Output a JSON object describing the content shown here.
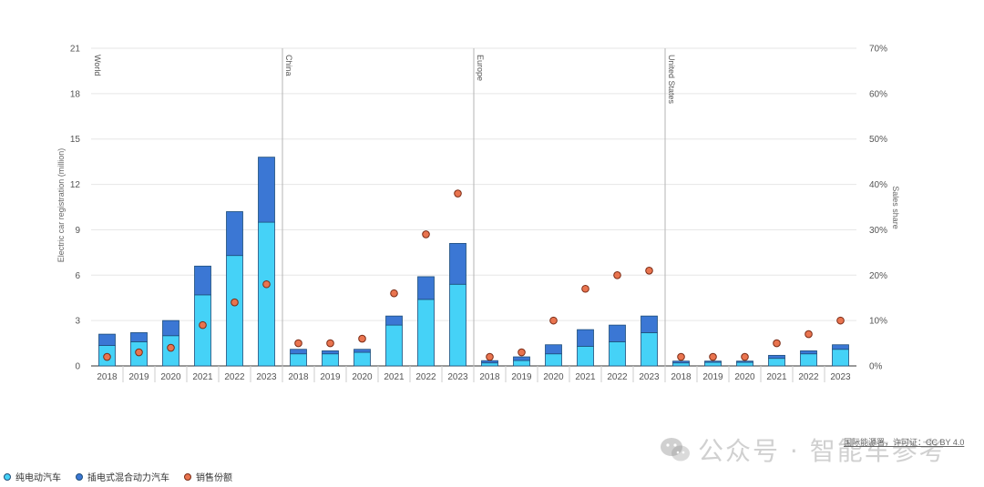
{
  "chart_data": {
    "type": "bar",
    "stacked": true,
    "groups": [
      {
        "name": "World",
        "years": [
          "2018",
          "2019",
          "2020",
          "2021",
          "2022",
          "2023"
        ],
        "bev": [
          1.35,
          1.6,
          2.0,
          4.7,
          7.3,
          9.5
        ],
        "phev": [
          0.75,
          0.6,
          1.0,
          1.9,
          2.9,
          4.3
        ],
        "share": [
          2,
          3,
          4,
          9,
          14,
          18
        ]
      },
      {
        "name": "China",
        "years": [
          "2018",
          "2019",
          "2020",
          "2021",
          "2022",
          "2023"
        ],
        "bev": [
          0.8,
          0.8,
          0.9,
          2.7,
          4.4,
          5.4
        ],
        "phev": [
          0.3,
          0.2,
          0.2,
          0.6,
          1.5,
          2.7
        ],
        "share": [
          5,
          5,
          6,
          16,
          29,
          38
        ]
      },
      {
        "name": "Europe",
        "years": [
          "2018",
          "2019",
          "2020",
          "2021",
          "2022",
          "2023"
        ],
        "bev": [
          0.2,
          0.36,
          0.8,
          1.3,
          1.6,
          2.2
        ],
        "phev": [
          0.15,
          0.24,
          0.6,
          1.1,
          1.1,
          1.1
        ],
        "share": [
          2,
          3,
          10,
          17,
          20,
          21
        ]
      },
      {
        "name": "United States",
        "years": [
          "2018",
          "2019",
          "2020",
          "2021",
          "2022",
          "2023"
        ],
        "bev": [
          0.2,
          0.24,
          0.24,
          0.5,
          0.8,
          1.1
        ],
        "phev": [
          0.12,
          0.08,
          0.08,
          0.2,
          0.2,
          0.3
        ],
        "share": [
          2,
          2,
          2,
          5,
          7,
          10
        ]
      }
    ],
    "y_left": {
      "label": "Electric car registration (million)",
      "min": 0,
      "max": 21,
      "ticks": [
        "0",
        "3",
        "6",
        "9",
        "12",
        "15",
        "18",
        "21"
      ]
    },
    "y_right": {
      "label": "Sales share",
      "min": 0,
      "max": 70,
      "ticks": [
        "0%",
        "10%",
        "20%",
        "30%",
        "40%",
        "50%",
        "60%",
        "70%"
      ]
    },
    "colors": {
      "bev": "#45d2f7",
      "phev": "#3b77d4",
      "share": "#e9744f"
    },
    "grid": true,
    "legend_placement": "bottom-left"
  },
  "legend": {
    "bev": "纯电动汽车",
    "phev": "插电式混合动力汽车",
    "share": "销售份额"
  },
  "watermark": {
    "text": "公众号 · 智能车参考",
    "icon": "wechat-icon"
  },
  "source_note": "国际能源署，许可证：CC BY 4.0"
}
